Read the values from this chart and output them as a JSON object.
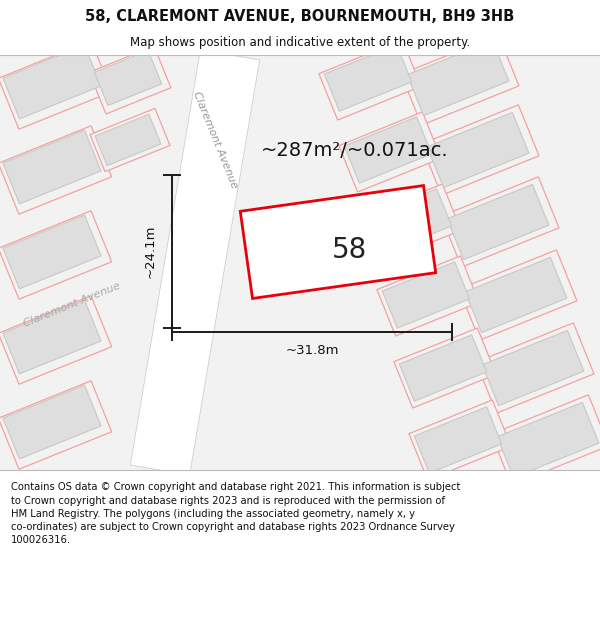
{
  "title": "58, CLAREMONT AVENUE, BOURNEMOUTH, BH9 3HB",
  "subtitle": "Map shows position and indicative extent of the property.",
  "footer": "Contains OS data © Crown copyright and database right 2021. This information is subject\nto Crown copyright and database rights 2023 and is reproduced with the permission of\nHM Land Registry. The polygons (including the associated geometry, namely x, y\nco-ordinates) are subject to Crown copyright and database rights 2023 Ordnance Survey\n100026316.",
  "area_text": "~287m²/~0.071ac.",
  "label_58": "58",
  "dim_width": "~31.8m",
  "dim_height": "~24.1m",
  "street_label_upper": "Claremont Avenue",
  "street_label_lower": "Claremont Avenue",
  "bg_color": "#f2f2f2",
  "road_color": "#ffffff",
  "plot_outline_color": "#e8000a",
  "plot_fill": "#ffffff",
  "dim_line_color": "#1a1a1a",
  "pink_line_color": "#f5a0a0",
  "grey_fill": "#dedede",
  "grey_edge": "#c8c8c8",
  "title_fontsize": 10.5,
  "subtitle_fontsize": 8.5,
  "footer_fontsize": 7.2,
  "area_fontsize": 14,
  "label_fontsize": 20,
  "dim_fontsize": 9.5,
  "street_fontsize": 8
}
